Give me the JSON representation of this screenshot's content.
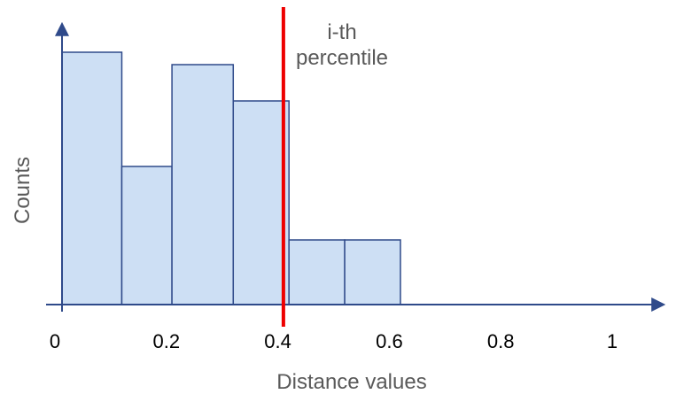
{
  "chart_data": {
    "type": "bar",
    "title": "",
    "xlabel": "Distance values",
    "ylabel": "Counts",
    "xlim": [
      0,
      1
    ],
    "x_ticks": [
      "0",
      "0.2",
      "0.4",
      "0.6",
      "0.8",
      "1"
    ],
    "y_ticks_shown": false,
    "grid": false,
    "legend": "none",
    "bins": [
      {
        "x0": 0.0,
        "x1": 0.12,
        "count": 285
      },
      {
        "x0": 0.12,
        "x1": 0.21,
        "count": 156
      },
      {
        "x0": 0.21,
        "x1": 0.32,
        "count": 271
      },
      {
        "x0": 0.32,
        "x1": 0.42,
        "count": 230
      },
      {
        "x0": 0.42,
        "x1": 0.52,
        "count": 73
      },
      {
        "x0": 0.52,
        "x1": 0.62,
        "count": 73
      }
    ],
    "ylim": [
      0,
      320
    ],
    "percentile_line": {
      "x": 0.41,
      "label_line1": "i-th",
      "label_line2": "percentile",
      "color": "#ee0000"
    },
    "colors": {
      "bar_fill": "#cddff4",
      "bar_stroke": "#2f4a8a",
      "axis": "#2f4a8a"
    }
  }
}
